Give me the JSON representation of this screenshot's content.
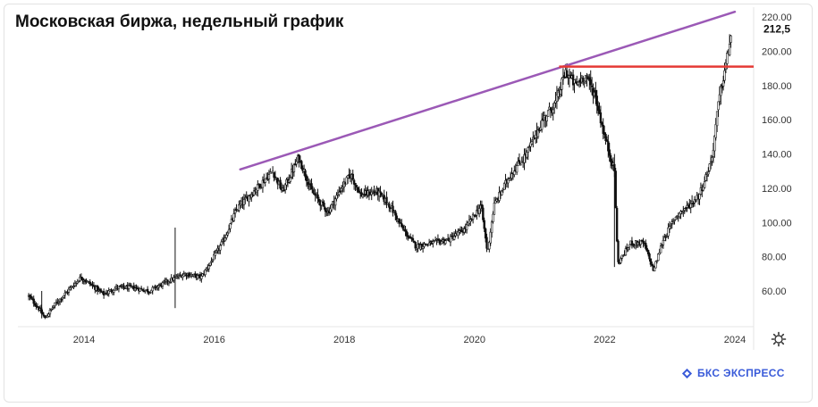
{
  "chart_data": {
    "type": "candlestick",
    "title": "Московская биржа, недельный график",
    "x_tick_labels": [
      "2014",
      "2016",
      "2018",
      "2020",
      "2022",
      "2024"
    ],
    "y_tick_labels": [
      "60.00",
      "80.00",
      "100.00",
      "120.00",
      "140.00",
      "160.00",
      "180.00",
      "200.00",
      "220.00"
    ],
    "ylim": [
      40,
      222
    ],
    "xlim": [
      2013.1,
      2024.3
    ],
    "last_price_label": "212,5",
    "last_price": 212.5,
    "price_path": [
      [
        2013.15,
        57
      ],
      [
        2013.3,
        50
      ],
      [
        2013.4,
        44
      ],
      [
        2013.55,
        52
      ],
      [
        2013.75,
        60
      ],
      [
        2013.95,
        68
      ],
      [
        2014.1,
        64
      ],
      [
        2014.3,
        58
      ],
      [
        2014.5,
        62
      ],
      [
        2014.75,
        62
      ],
      [
        2015.0,
        60
      ],
      [
        2015.3,
        66
      ],
      [
        2015.55,
        70
      ],
      [
        2015.8,
        68
      ],
      [
        2016.0,
        80
      ],
      [
        2016.15,
        90
      ],
      [
        2016.35,
        108
      ],
      [
        2016.55,
        116
      ],
      [
        2016.75,
        124
      ],
      [
        2016.9,
        130
      ],
      [
        2017.05,
        118
      ],
      [
        2017.3,
        138
      ],
      [
        2017.5,
        118
      ],
      [
        2017.75,
        106
      ],
      [
        2017.95,
        120
      ],
      [
        2018.1,
        128
      ],
      [
        2018.25,
        116
      ],
      [
        2018.5,
        118
      ],
      [
        2018.7,
        110
      ],
      [
        2018.9,
        96
      ],
      [
        2019.1,
        86
      ],
      [
        2019.35,
        88
      ],
      [
        2019.6,
        90
      ],
      [
        2019.85,
        96
      ],
      [
        2020.1,
        110
      ],
      [
        2020.2,
        82
      ],
      [
        2020.3,
        110
      ],
      [
        2020.55,
        128
      ],
      [
        2020.8,
        140
      ],
      [
        2021.05,
        160
      ],
      [
        2021.25,
        170
      ],
      [
        2021.4,
        188
      ],
      [
        2021.55,
        180
      ],
      [
        2021.7,
        186
      ],
      [
        2021.85,
        175
      ],
      [
        2022.0,
        150
      ],
      [
        2022.15,
        130
      ],
      [
        2022.2,
        76
      ],
      [
        2022.4,
        88
      ],
      [
        2022.6,
        88
      ],
      [
        2022.75,
        72
      ],
      [
        2022.9,
        90
      ],
      [
        2023.1,
        104
      ],
      [
        2023.3,
        110
      ],
      [
        2023.45,
        116
      ],
      [
        2023.55,
        126
      ],
      [
        2023.65,
        138
      ],
      [
        2023.75,
        170
      ],
      [
        2023.88,
        196
      ],
      [
        2023.95,
        212
      ]
    ],
    "trendline": {
      "from": [
        2016.4,
        131
      ],
      "to": [
        2024.0,
        223
      ],
      "color": "#9b59b6"
    },
    "resistance": {
      "from": [
        2021.3,
        191
      ],
      "to": [
        2024.3,
        191
      ],
      "color": "#e53935"
    },
    "colors": {
      "candle": "#111111",
      "axis": "#e6e6e6",
      "tick_text": "#333333"
    },
    "grid": false
  },
  "brand": {
    "name": "БКС ЭКСПРЕСС",
    "icon": "bks-logo-icon"
  },
  "controls": {
    "settings_icon": "gear-icon"
  }
}
